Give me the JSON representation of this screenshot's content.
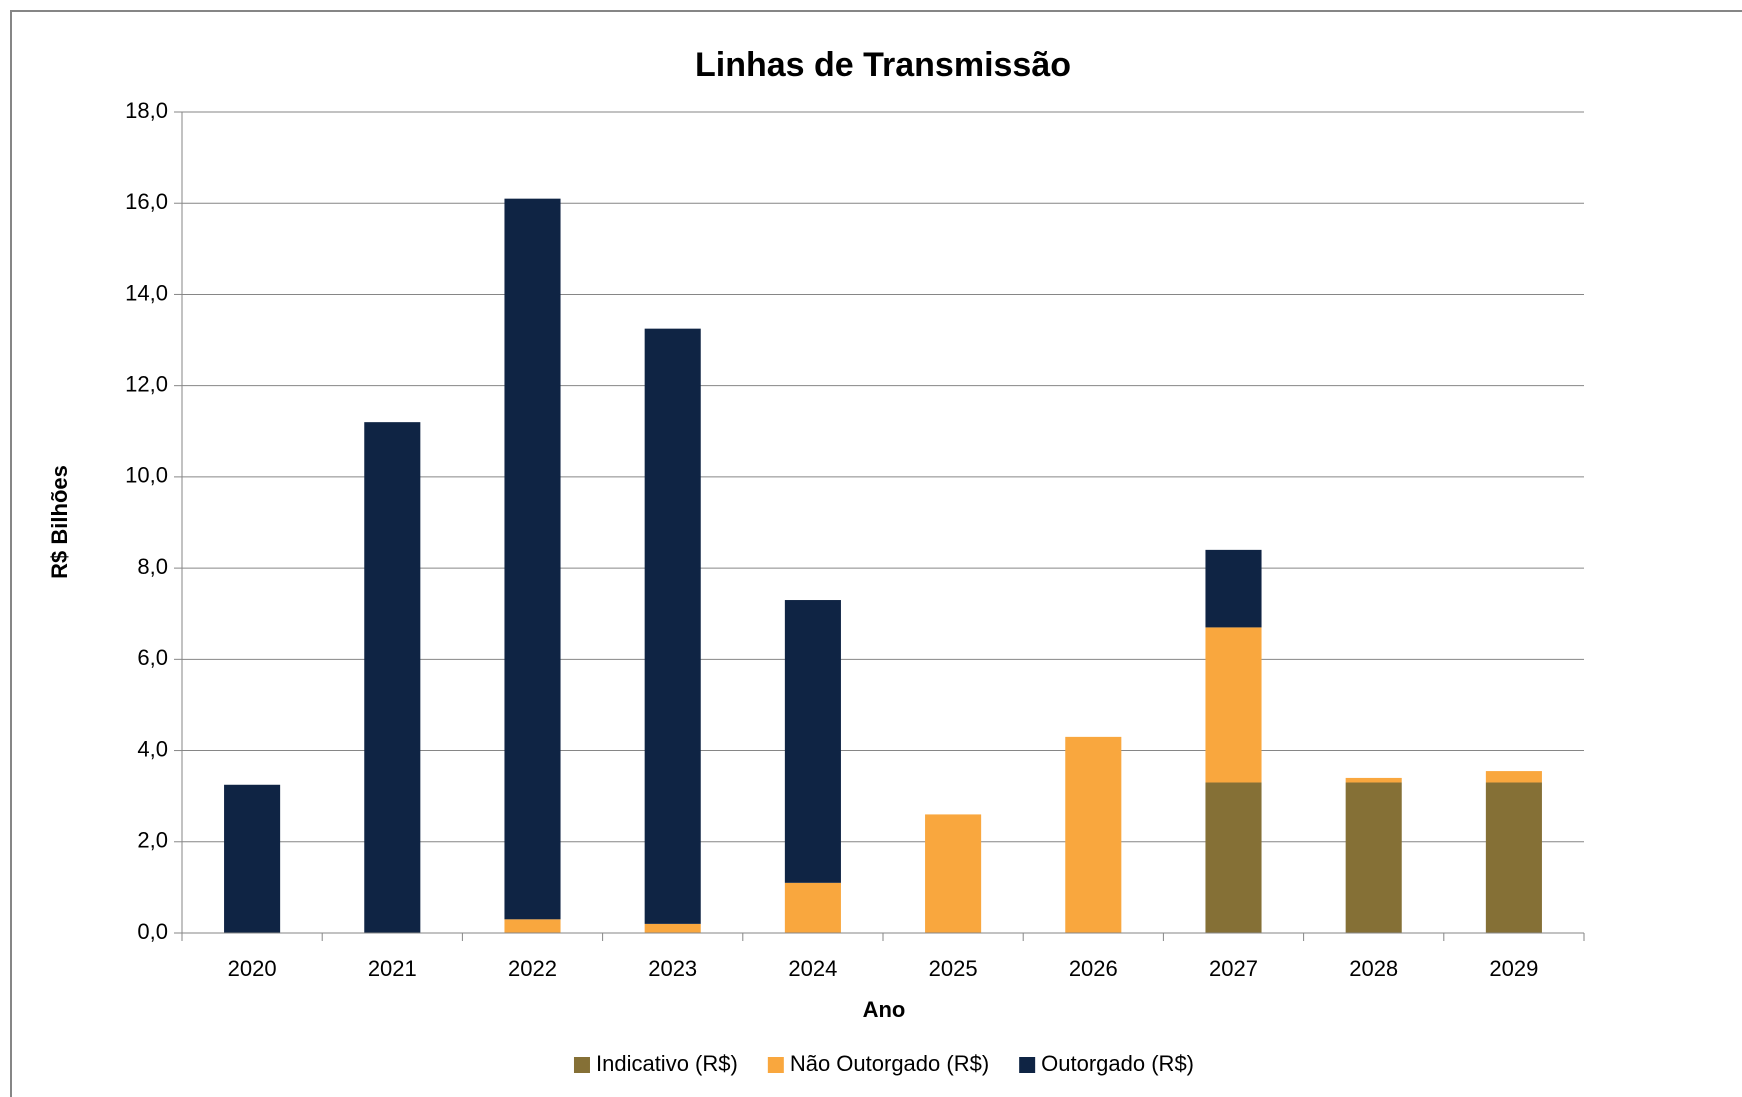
{
  "chart_data": {
    "type": "bar",
    "stacked": true,
    "title": "Linhas de Transmissão",
    "x_label": "Ano",
    "y_label": "R$ Bilhões",
    "categories": [
      "2020",
      "2021",
      "2022",
      "2023",
      "2024",
      "2025",
      "2026",
      "2027",
      "2028",
      "2029"
    ],
    "series": [
      {
        "name": "Indicativo (R$)",
        "color": "#857036",
        "values": [
          0,
          0,
          0,
          0,
          0,
          0,
          0,
          3.3,
          3.3,
          3.3
        ]
      },
      {
        "name": "Não Outorgado (R$)",
        "color": "#f9a73e",
        "values": [
          0,
          0,
          0.3,
          0.2,
          1.1,
          2.6,
          4.3,
          3.4,
          0.1,
          0.25
        ]
      },
      {
        "name": "Outorgado (R$)",
        "color": "#0f2444",
        "values": [
          3.25,
          11.2,
          15.8,
          13.05,
          6.2,
          0,
          0,
          1.7,
          0,
          0
        ]
      }
    ],
    "ylim": [
      0,
      18
    ],
    "yticks": [
      {
        "value": 0,
        "label": "0,0"
      },
      {
        "value": 2,
        "label": "2,0"
      },
      {
        "value": 4,
        "label": "4,0"
      },
      {
        "value": 6,
        "label": "6,0"
      },
      {
        "value": 8,
        "label": "8,0"
      },
      {
        "value": 10,
        "label": "10,0"
      },
      {
        "value": 12,
        "label": "12,0"
      },
      {
        "value": 14,
        "label": "14,0"
      },
      {
        "value": 16,
        "label": "16,0"
      },
      {
        "value": 18,
        "label": "18,0"
      }
    ],
    "grid": true,
    "legend": "bottom"
  }
}
